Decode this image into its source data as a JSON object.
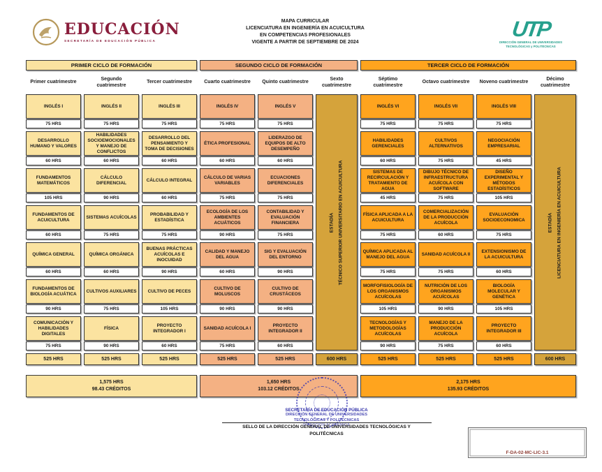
{
  "palette": {
    "cycle1": "#FBE3A0",
    "cycle2": "#F4B183",
    "cycle3": "#FFA41E",
    "estadia": "#D5A33B",
    "border": "#303030",
    "stamp_blue": "#2F2FA8",
    "brand_maroon": "#8A1E3C",
    "utp_teal": "#27A08D",
    "form_code_red": "#8E3B32"
  },
  "header": {
    "sep": {
      "wordmark": "EDUCACIÓN",
      "subtitle": "SECRETARÍA DE EDUCACIÓN PÚBLICA"
    },
    "title_lines": [
      "MAPA CURRICULAR",
      "LICENCIATURA EN INGENIERÍA EN ACUICULTURA",
      "EN COMPETENCIAS PROFESIONALES",
      "VIGENTE A PARTIR DE SEPTIEMBRE DE 2024"
    ],
    "utp": {
      "acronym": "UTP",
      "sub1": "DIRECCIÓN GENERAL DE UNIVERSIDADES",
      "sub2": "TECNOLÓGICAS y POLITÉCNICAS"
    }
  },
  "cycles": [
    {
      "label": "PRIMER CICLO DE FORMACIÓN",
      "color": "#FBE3A0",
      "summary_hours": "1,575 HRS",
      "summary_credits": "98.43 CRÉDITOS"
    },
    {
      "label": "SEGUNDO CICLO DE FORMACIÓN",
      "color": "#F4B183",
      "summary_hours": "1,650 HRS",
      "summary_credits": "103.12 CRÉDITOS"
    },
    {
      "label": "TERCER CICLO DE FORMACIÓN",
      "color": "#FFA41E",
      "summary_hours": "2,175 HRS",
      "summary_credits": "135.93 CRÉDITOS"
    }
  ],
  "columns": [
    {
      "header": "Primer cuatrimestre",
      "cycle": 0,
      "type": "regular",
      "total": "525 HRS",
      "courses": [
        {
          "name": "INGLÉS I",
          "hours": "75 HRS"
        },
        {
          "name": "DESARROLLO HUMANO Y VALORES",
          "hours": "60 HRS"
        },
        {
          "name": "FUNDAMENTOS MATEMÁTICOS",
          "hours": "105 HRS"
        },
        {
          "name": "FUNDAMENTOS DE ACUICULTURA",
          "hours": "60 HRS"
        },
        {
          "name": "QUÍMICA GENERAL",
          "hours": "60 HRS"
        },
        {
          "name": "FUNDAMENTOS DE BIOLOGÍA ACUÁTICA",
          "hours": "90 HRS"
        },
        {
          "name": "COMUNICACIÓN Y HABILIDADES DIGITALES",
          "hours": "75 HRS"
        }
      ]
    },
    {
      "header": "Segundo cuatrimestre",
      "cycle": 0,
      "type": "regular",
      "total": "525 HRS",
      "courses": [
        {
          "name": "INGLÉS II",
          "hours": "75 HRS"
        },
        {
          "name": "HABILIDADES SOCIOEMOCIONALES Y MANEJO DE CONFLICTOS",
          "hours": "60 HRS"
        },
        {
          "name": "CÁLCULO DIFERENCIAL",
          "hours": "90 HRS"
        },
        {
          "name": "SISTEMAS ACUÍCOLAS",
          "hours": "75 HRS"
        },
        {
          "name": "QUÍMICA ORGÁNICA",
          "hours": "60 HRS"
        },
        {
          "name": "CULTIVOS AUXILIARES",
          "hours": "75 HRS"
        },
        {
          "name": "FÍSICA",
          "hours": "90 HRS"
        }
      ]
    },
    {
      "header": "Tercer cuatrimestre",
      "cycle": 0,
      "type": "regular",
      "total": "525 HRS",
      "courses": [
        {
          "name": "INGLÉS III",
          "hours": "75 HRS"
        },
        {
          "name": "DESARROLLO DEL PENSAMIENTO Y TOMA DE DECISIONES",
          "hours": "60 HRS"
        },
        {
          "name": "CÁLCULO INTEGRAL",
          "hours": "60 HRS"
        },
        {
          "name": "PROBABILIDAD Y ESTADÍSTICA",
          "hours": "75 HRS"
        },
        {
          "name": "BUENAS PRÁCTICAS ACUÍCOLAS E INOCUIDAD",
          "hours": "90 HRS"
        },
        {
          "name": "CULTIVO DE PECES",
          "hours": "105 HRS"
        },
        {
          "name": "PROYECTO INTEGRADOR I",
          "hours": "60 HRS"
        }
      ]
    },
    {
      "header": "Cuarto cuatrimestre",
      "cycle": 1,
      "type": "regular",
      "total": "525 HRS",
      "courses": [
        {
          "name": "INGLÉS IV",
          "hours": "75 HRS"
        },
        {
          "name": "ÉTICA PROFESIONAL",
          "hours": "60 HRS"
        },
        {
          "name": "CÁLCULO DE VARIAS VARIABLES",
          "hours": "75 HRS"
        },
        {
          "name": "ECOLOGÍA DE LOS AMBIENTES ACUÁTICOS",
          "hours": "90 HRS"
        },
        {
          "name": "CALIDAD Y MANEJO DEL AGUA",
          "hours": "60 HRS"
        },
        {
          "name": "CULTIVO DE MOLUSCOS",
          "hours": "90 HRS"
        },
        {
          "name": "SANIDAD ACUÍCOLA I",
          "hours": "75 HRS"
        }
      ]
    },
    {
      "header": "Quinto cuatrimestre",
      "cycle": 1,
      "type": "regular",
      "total": "525 HRS",
      "courses": [
        {
          "name": "INGLÉS V",
          "hours": "75 HRS"
        },
        {
          "name": "LIDERAZGO DE EQUIPOS DE ALTO DESEMPEÑO",
          "hours": "60 HRS"
        },
        {
          "name": "ECUACIONES DIFERENCIALES",
          "hours": "75 HRS"
        },
        {
          "name": "CONTABILIDAD Y EVALUACIÓN FINANCIERA",
          "hours": "75 HRS"
        },
        {
          "name": "SIG Y EVALUACIÓN DEL ENTORNO",
          "hours": "90 HRS"
        },
        {
          "name": "CULTIVO DE CRUSTÁCEOS",
          "hours": "90 HRS"
        },
        {
          "name": "PROYECTO INTEGRADOR II",
          "hours": "60 HRS"
        }
      ]
    },
    {
      "header": "Sexto cuatrimestre",
      "cycle": 1,
      "type": "estadia",
      "total": "600 HRS",
      "bar_line1": "ESTADÍA",
      "bar_line2": "TÉCNICO SUPERIOR UNIVERSITARIO EN ACUICULTURA",
      "courses": []
    },
    {
      "header": "Séptimo cuatrimestre",
      "cycle": 2,
      "type": "regular",
      "total": "525 HRS",
      "courses": [
        {
          "name": "INGLÉS VI",
          "hours": "75 HRS"
        },
        {
          "name": "HABILIDADES GERENCIALES",
          "hours": "60 HRS"
        },
        {
          "name": "SISTEMAS DE RECIRCULACIÓN Y TRATAMIENTO DE AGUA",
          "hours": "45 HRS"
        },
        {
          "name": "FÍSICA APLICADA A LA ACUICULTURA",
          "hours": "75 HRS"
        },
        {
          "name": "QUÍMICA APLICADA AL MANEJO DEL AGUA",
          "hours": "75 HRS"
        },
        {
          "name": "MORFOFISIOLOGÍA DE LOS ORGANISMOS ACUÍCOLAS",
          "hours": "105 HRS"
        },
        {
          "name": "TECNOLOGÍAS Y METODOLOGÍAS ACUÍCOLAS",
          "hours": "90 HRS"
        }
      ]
    },
    {
      "header": "Octavo cuatrimestre",
      "cycle": 2,
      "type": "regular",
      "total": "525 HRS",
      "courses": [
        {
          "name": "INGLÉS VII",
          "hours": "75 HRS"
        },
        {
          "name": "CULTIVOS ALTERNATIVOS",
          "hours": "75 HRS"
        },
        {
          "name": "DIBUJO TÉCNICO DE INFRAESTRUCTURA ACUÍCOLA CON SOFTWARE",
          "hours": "75 HRS"
        },
        {
          "name": "COMERCIALIZACIÓN DE LA PRODUCCIÓN ACUÍCOLA",
          "hours": "60 HRS"
        },
        {
          "name": "SANIDAD ACUÍCOLA II",
          "hours": "75 HRS"
        },
        {
          "name": "NUTRICIÓN DE LOS ORGANISMOS ACUÍCOLAS",
          "hours": "90 HRS"
        },
        {
          "name": "MANEJO DE LA PRODUCCIÓN ACUÍCOLA",
          "hours": "75 HRS"
        }
      ]
    },
    {
      "header": "Noveno cuatrimestre",
      "cycle": 2,
      "type": "regular",
      "total": "525 HRS",
      "courses": [
        {
          "name": "INGLÉS VIII",
          "hours": "75 HRS"
        },
        {
          "name": "NEGOCIACIÓN EMPRESARIAL",
          "hours": "45 HRS"
        },
        {
          "name": "DISEÑO EXPERIMENTAL Y MÉTODOS ESTADÍSTICOS",
          "hours": "105 HRS"
        },
        {
          "name": "EVALUACIÓN SOCIOECONOMICA",
          "hours": "75 HRS"
        },
        {
          "name": "EXTENSIONISMO DE LA ACUICULTURA",
          "hours": "60 HRS"
        },
        {
          "name": "BIOLOGÍA MOLECULAR Y GENÉTICA",
          "hours": "105 HRS"
        },
        {
          "name": "PROYECTO INTEGRADOR III",
          "hours": "60 HRS"
        }
      ]
    },
    {
      "header": "Décimo cuatrimestre",
      "cycle": 2,
      "type": "estadia",
      "total": "600 HRS",
      "bar_line1": "ESTADÍA",
      "bar_line2": "LICENCIATURA EN INGENIERÍA EN  ACUICULTURA",
      "courses": []
    }
  ],
  "footer": {
    "stamp_lines": [
      "SECRETARÍA DE EDUCACIÓN PÚBLICA",
      "DIRECCIÓN GENERAL DE UNIVERSIDADES",
      "TECNOLÓGICAS Y POLITÉCNICAS",
      "DIRECCIÓN ACADÉMICA"
    ],
    "sello_text": "SELLO DE LA DIRECCIÓN GENERAL DE UNIVERSIDADES TECNOLÓGICAS Y POLITÉCNICAS",
    "form_code": "F-DA-02-MC-LIC-3.1"
  }
}
